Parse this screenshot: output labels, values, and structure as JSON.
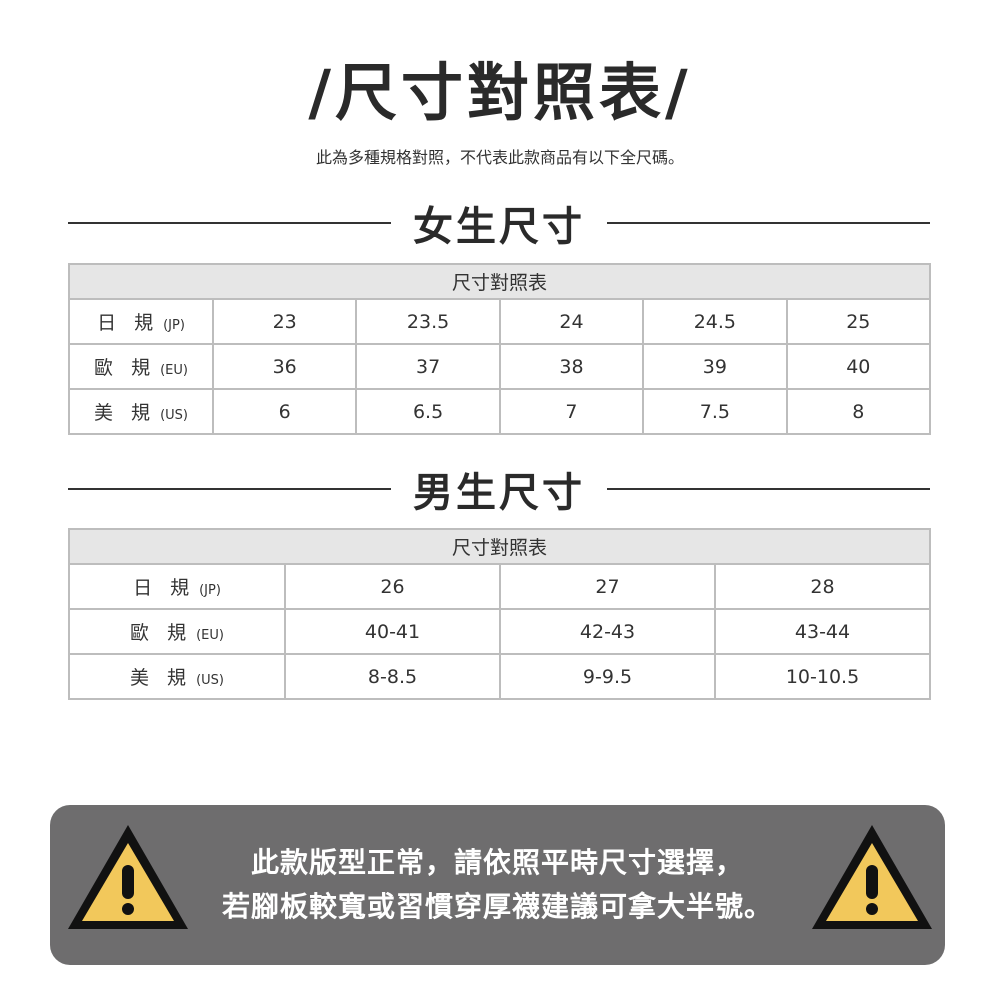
{
  "title": "/尺寸對照表/",
  "subtitle": "此為多種規格對照，不代表此款商品有以下全尺碼。",
  "women": {
    "heading": "女生尺寸",
    "table_header": "尺寸對照表",
    "rows": [
      {
        "label": "日 規",
        "unit": "(JP)",
        "values": [
          "23",
          "23.5",
          "24",
          "24.5",
          "25"
        ]
      },
      {
        "label": "歐 規",
        "unit": "(EU)",
        "values": [
          "36",
          "37",
          "38",
          "39",
          "40"
        ]
      },
      {
        "label": "美 規",
        "unit": "(US)",
        "values": [
          "6",
          "6.5",
          "7",
          "7.5",
          "8"
        ]
      }
    ]
  },
  "men": {
    "heading": "男生尺寸",
    "table_header": "尺寸對照表",
    "rows": [
      {
        "label": "日 規",
        "unit": "(JP)",
        "values": [
          "26",
          "27",
          "28"
        ]
      },
      {
        "label": "歐 規",
        "unit": "(EU)",
        "values": [
          "40-41",
          "42-43",
          "43-44"
        ]
      },
      {
        "label": "美 規",
        "unit": "(US)",
        "values": [
          "8-8.5",
          "9-9.5",
          "10-10.5"
        ]
      }
    ]
  },
  "warning": {
    "line1": "此款版型正常，請依照平時尺寸選擇，",
    "line2": "若腳板較寬或習慣穿厚襪建議可拿大半號。",
    "icon": "warning-triangle-icon",
    "colors": {
      "box": "#6e6d6e",
      "triangle": "#f2c85b"
    }
  }
}
